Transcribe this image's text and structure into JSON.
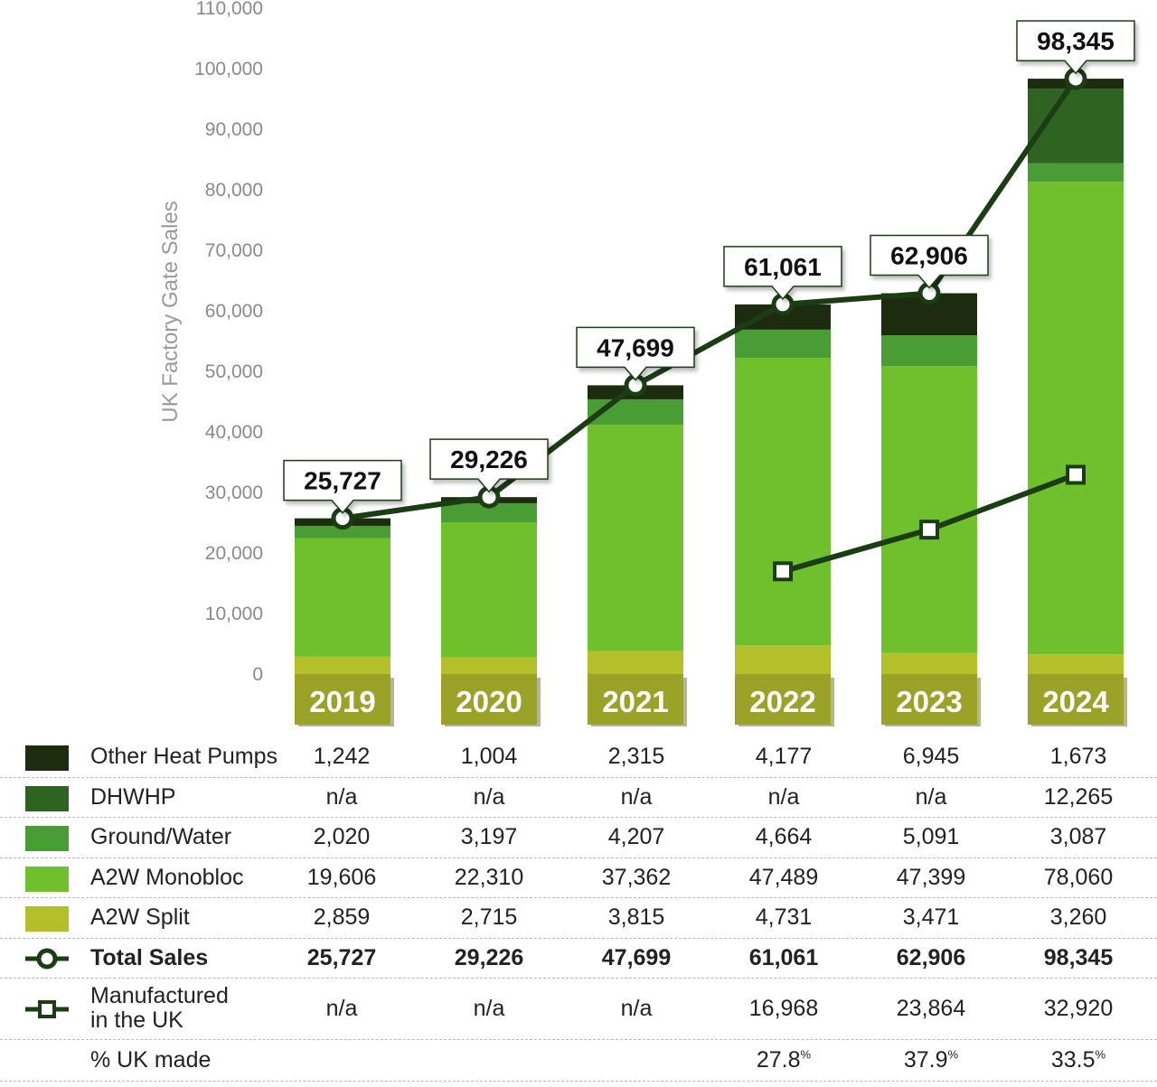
{
  "chart_data": {
    "type": "bar",
    "stacked": true,
    "categories": [
      "2019",
      "2020",
      "2021",
      "2022",
      "2023",
      "2024"
    ],
    "ylabel": "UK Factory Gate Sales",
    "ylim": [
      0,
      110000
    ],
    "yticks": [
      "0",
      "10,000",
      "20,000",
      "30,000",
      "40,000",
      "50,000",
      "60,000",
      "70,000",
      "80,000",
      "90,000",
      "100,000",
      "110,000"
    ],
    "series": [
      {
        "name": "A2W Split",
        "values": [
          2859,
          2715,
          3815,
          4731,
          3471,
          3260
        ],
        "color": "#b3c02a"
      },
      {
        "name": "A2W Monobloc",
        "values": [
          19606,
          22310,
          37362,
          47489,
          47399,
          78060
        ],
        "color": "#6fc02c"
      },
      {
        "name": "Ground/Water",
        "values": [
          2020,
          3197,
          4207,
          4664,
          5091,
          3087
        ],
        "color": "#4a9d34"
      },
      {
        "name": "DHWHP",
        "values": [
          null,
          null,
          null,
          null,
          null,
          12265
        ],
        "color": "#2f6322"
      },
      {
        "name": "Other Heat Pumps",
        "values": [
          1242,
          1004,
          2315,
          4177,
          6945,
          1673
        ],
        "color": "#1d2c0f"
      }
    ],
    "lines": [
      {
        "name": "Total Sales",
        "values": [
          25727,
          29226,
          47699,
          61061,
          62906,
          98345
        ],
        "marker": "circle",
        "color": "#1a3d14"
      },
      {
        "name": "Manufactured in the UK",
        "values": [
          null,
          null,
          null,
          16968,
          23864,
          32920
        ],
        "marker": "square",
        "color": "#1a3d14"
      }
    ],
    "callouts": [
      "25,727",
      "29,226",
      "47,699",
      "61,061",
      "62,906",
      "98,345"
    ],
    "year_band_color": "#9aa228",
    "grid": false
  },
  "table": {
    "rows": [
      {
        "label": "Other Heat Pumps",
        "icon": "swatch",
        "color": "#1d2c0f",
        "cells": [
          "1,242",
          "1,004",
          "2,315",
          "4,177",
          "6,945",
          "1,673"
        ]
      },
      {
        "label": "DHWHP",
        "icon": "swatch",
        "color": "#2f6322",
        "cells": [
          "n/a",
          "n/a",
          "n/a",
          "n/a",
          "n/a",
          "12,265"
        ]
      },
      {
        "label": "Ground/Water",
        "icon": "swatch",
        "color": "#4a9d34",
        "cells": [
          "2,020",
          "3,197",
          "4,207",
          "4,664",
          "5,091",
          "3,087"
        ]
      },
      {
        "label": "A2W Monobloc",
        "icon": "swatch",
        "color": "#6fc02c",
        "cells": [
          "19,606",
          "22,310",
          "37,362",
          "47,489",
          "47,399",
          "78,060"
        ]
      },
      {
        "label": "A2W Split",
        "icon": "swatch",
        "color": "#b3c02a",
        "cells": [
          "2,859",
          "2,715",
          "3,815",
          "4,731",
          "3,471",
          "3,260"
        ]
      },
      {
        "label": "Total Sales",
        "icon": "circle-line-icon",
        "bold": true,
        "cells": [
          "25,727",
          "29,226",
          "47,699",
          "61,061",
          "62,906",
          "98,345"
        ]
      },
      {
        "label_line1": "Manufactured",
        "label_line2": "in the UK",
        "icon": "square-line-icon",
        "cells": [
          "n/a",
          "n/a",
          "n/a",
          "16,968",
          "23,864",
          "32,920"
        ]
      },
      {
        "label": "% UK made",
        "icon": "none",
        "cells": [
          "",
          "",
          "",
          "27.8",
          "37.9",
          "33.5"
        ],
        "suffix": "%"
      }
    ]
  }
}
